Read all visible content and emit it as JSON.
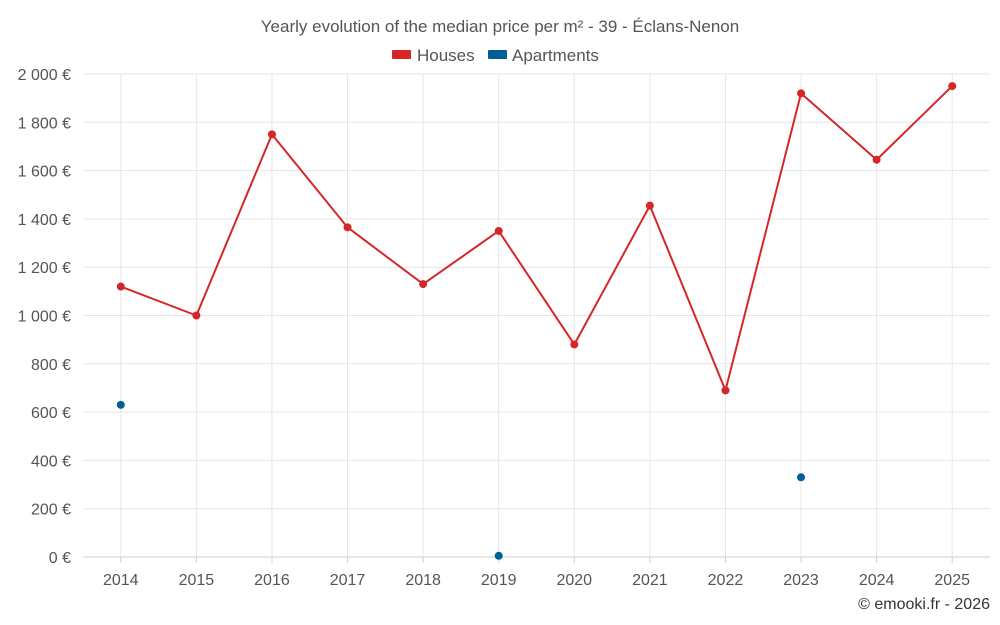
{
  "chart_data": {
    "type": "line",
    "title": "Yearly evolution of the median price per m² - 39 - Éclans-Nenon",
    "categories": [
      "2014",
      "2015",
      "2016",
      "2017",
      "2018",
      "2019",
      "2020",
      "2021",
      "2022",
      "2023",
      "2024",
      "2025"
    ],
    "ylim": [
      0,
      2000
    ],
    "yticks": [
      0,
      200,
      400,
      600,
      800,
      1000,
      1200,
      1400,
      1600,
      1800,
      2000
    ],
    "ytick_labels": [
      "0 €",
      "200 €",
      "400 €",
      "600 €",
      "800 €",
      "1 000 €",
      "1 200 €",
      "1 400 €",
      "1 600 €",
      "1 800 €",
      "2 000 €"
    ],
    "xlabel": "",
    "ylabel": "",
    "grid": true,
    "legend_position": "top-center",
    "series": [
      {
        "name": "Houses",
        "color": "#d62728",
        "style": "line",
        "values": [
          1120,
          1000,
          1750,
          1365,
          1130,
          1350,
          880,
          1455,
          690,
          1920,
          1645,
          1950
        ]
      },
      {
        "name": "Apartments",
        "color": "#005f99",
        "style": "markers",
        "values": [
          630,
          null,
          null,
          null,
          null,
          5,
          null,
          null,
          null,
          330,
          null,
          null
        ]
      }
    ],
    "credit": "© emooki.fr - 2026"
  }
}
